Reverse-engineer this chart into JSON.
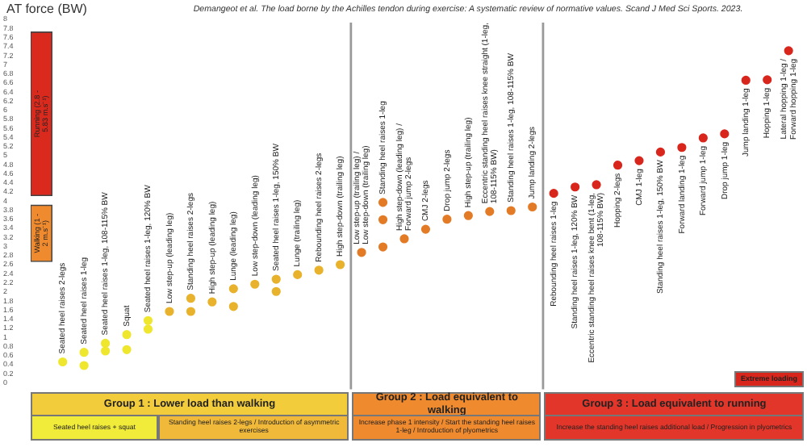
{
  "chart_data": {
    "type": "scatter",
    "subtitle": "Demangeot et al. The load borne by the Achilles tendon during exercise: A systematic review of normative values. Scand J Med Sci Sports. 2023.",
    "ylabel": "AT force (BW)",
    "categories": [
      null,
      "Seated heel raises 2-legs",
      "Seated heel raises 1-leg",
      "Seated heel raises 1-leg, 108-115% BW",
      "Squat",
      "Seated heel raises 1-leg, 120% BW",
      "Low step-up (leading leg)",
      "Standing heel raises 2-legs",
      "High step-up (leading leg)",
      "Lunge (leading leg)",
      "Low step-down (leading leg)",
      "Seated heel raises 1-leg, 150% BW",
      "Lunge (trailing leg)",
      "Rebounding heel raises 2-legs",
      "High step-down (trailing leg)",
      "Low step-up (trailing leg) / Low step-down (trailing leg)",
      "Standing heel raises 1-leg",
      "High step-down (leading leg) / Forward jump 2-legs",
      "CMJ 2-legs",
      "Drop jump 2-legs",
      "High step-up (trailing leg)",
      "Eccentric standing heel raises knee straight (1-leg, 108-115% BW)",
      "Standing heel raises 1-leg, 108-115% BW",
      "Jump landing 2-legs",
      "Rebounding heel raises 1-leg",
      "Standing heel raises 1-leg, 120% BW",
      "Eccentric standing heel raises knee bent (1-leg, 108-115% BW)",
      "Hopping 2-legs",
      "CMJ 1-leg",
      "Standing heel raises 1-leg, 150% BW",
      "Forward landing 1-leg",
      "Forward jump 1-leg",
      "Drop jump 1-leg",
      "Jump landing 1-leg",
      "Hopping 1-leg",
      "Lateral hopping 1-leg / Forward hopping 1-leg"
    ],
    "series": [
      {
        "type": "bar",
        "name": "Walking (1 - 2 m.s⁻¹)",
        "color": "#ef8a2e",
        "values": [
          1.24,
          null,
          null,
          null,
          null,
          null,
          null,
          null,
          null,
          null,
          null,
          null,
          null,
          null,
          null,
          null,
          null,
          null,
          null,
          null,
          null,
          null,
          null,
          null,
          null,
          null,
          null,
          null,
          null,
          null,
          null,
          null,
          null,
          null,
          null,
          null
        ],
        "base": [
          2.67,
          null,
          null,
          null,
          null,
          null,
          null,
          null,
          null,
          null,
          null,
          null,
          null,
          null,
          null,
          null,
          null,
          null,
          null,
          null,
          null,
          null,
          null,
          null,
          null,
          null,
          null,
          null,
          null,
          null,
          null,
          null,
          null,
          null,
          null,
          null
        ]
      },
      {
        "type": "bar",
        "name": "Running (2.8 - 5.83 m.s⁻¹)",
        "color": "#da2a1e",
        "values": [
          3.6,
          null,
          null,
          null,
          null,
          null,
          null,
          null,
          null,
          null,
          null,
          null,
          null,
          null,
          null,
          null,
          null,
          null,
          null,
          null,
          null,
          null,
          null,
          null,
          null,
          null,
          null,
          null,
          null,
          null,
          null,
          null,
          null,
          null,
          null,
          null
        ],
        "base": [
          4.12,
          null,
          null,
          null,
          null,
          null,
          null,
          null,
          null,
          null,
          null,
          null,
          null,
          null,
          null,
          null,
          null,
          null,
          null,
          null,
          null,
          null,
          null,
          null,
          null,
          null,
          null,
          null,
          null,
          null,
          null,
          null,
          null,
          null,
          null,
          null
        ]
      },
      {
        "values": [
          null,
          0.46,
          0.67,
          0.87,
          1.06,
          1.37,
          1.57,
          1.86,
          1.78,
          2.07,
          2.17,
          2.28,
          2.38,
          2.48,
          2.6,
          2.87,
          3.97,
          3.17,
          3.38,
          3.6,
          3.68,
          3.77,
          3.79,
          3.87,
          4.17,
          4.31,
          4.36,
          4.79,
          4.89,
          5.08,
          5.18,
          5.39,
          5.48,
          6.66,
          6.67,
          7.31
        ],
        "colors": [
          null,
          "#efe62e",
          "#efe62e",
          "#efe62e",
          "#efe62e",
          "#efe62e",
          "#e8b22c",
          "#e8b22c",
          "#e8b22c",
          "#e8b22c",
          "#e8b22c",
          "#e8b22c",
          "#e8b22c",
          "#e8b22c",
          "#e8b22c",
          "#e37b26",
          "#e37b26",
          "#e37b26",
          "#e37b26",
          "#e37b26",
          "#e37b26",
          "#e37b26",
          "#e37b26",
          "#e37b26",
          "#d9261c",
          "#d9261c",
          "#d9261c",
          "#d9261c",
          "#d9261c",
          "#d9261c",
          "#d9261c",
          "#d9261c",
          "#d9261c",
          "#d9261c",
          "#d9261c",
          "#d9261c"
        ]
      },
      {
        "values": [
          null,
          null,
          0.38,
          0.7,
          0.73,
          1.18,
          null,
          1.57,
          null,
          1.68,
          null,
          2.01,
          null,
          null,
          null,
          null,
          3.59,
          null,
          null,
          null,
          null,
          null,
          null,
          null,
          null,
          null,
          null,
          null,
          null,
          null,
          null,
          null,
          null,
          null,
          null,
          null
        ],
        "colors": [
          null,
          null,
          "#efe62e",
          "#efe62e",
          "#efe62e",
          "#efe62e",
          null,
          "#e8b22c",
          null,
          "#e8b22c",
          null,
          "#e8b22c",
          null,
          null,
          null,
          null,
          "#e37b26",
          null,
          null,
          null,
          null,
          null,
          null,
          null,
          null,
          null,
          null,
          null,
          null,
          null,
          null,
          null,
          null,
          null,
          null,
          null
        ]
      },
      {
        "values": [
          null,
          null,
          null,
          null,
          null,
          null,
          null,
          null,
          null,
          null,
          null,
          null,
          null,
          null,
          null,
          null,
          2.99,
          null,
          null,
          null,
          null,
          null,
          null,
          null,
          null,
          null,
          null,
          null,
          null,
          null,
          null,
          null,
          null,
          null,
          null,
          null
        ],
        "colors": [
          null,
          null,
          null,
          null,
          null,
          null,
          null,
          null,
          null,
          null,
          null,
          null,
          null,
          null,
          null,
          null,
          "#e37b26",
          null,
          null,
          null,
          null,
          null,
          null,
          null,
          null,
          null,
          null,
          null,
          null,
          null,
          null,
          null,
          null,
          null,
          null,
          null
        ]
      }
    ],
    "ylim": [
      0,
      8
    ],
    "yticks": [
      0,
      0.2,
      0.4,
      0.6,
      0.8,
      1,
      1.2,
      1.4,
      1.6,
      1.8,
      2,
      2.2,
      2.4,
      2.6,
      2.8,
      3,
      3.2,
      3.4,
      3.6,
      3.8,
      4,
      4.2,
      4.4,
      4.6,
      4.8,
      5,
      5.2,
      5.4,
      5.6,
      5.8,
      6,
      6.2,
      6.4,
      6.6,
      6.8,
      7,
      7.2,
      7.4,
      7.6,
      7.8,
      8
    ],
    "annotations": [
      "Group 1 : Lower load than walking",
      "Seated heel raises + squat",
      "Standing heel raises 2-legs / Introduction of asymmetric exercises",
      "Group 2 : Load equivalent to walking",
      "Increase phase 1 intensity / Start the standing heel raises 1-leg / Introduction of plyometrics",
      "Group 3 : Load equivalent to running",
      "Increase the standing heel raises additional load / Progression in plyometrics",
      "Extreme loading"
    ],
    "grid": false,
    "legend": false,
    "marker": "circle"
  }
}
